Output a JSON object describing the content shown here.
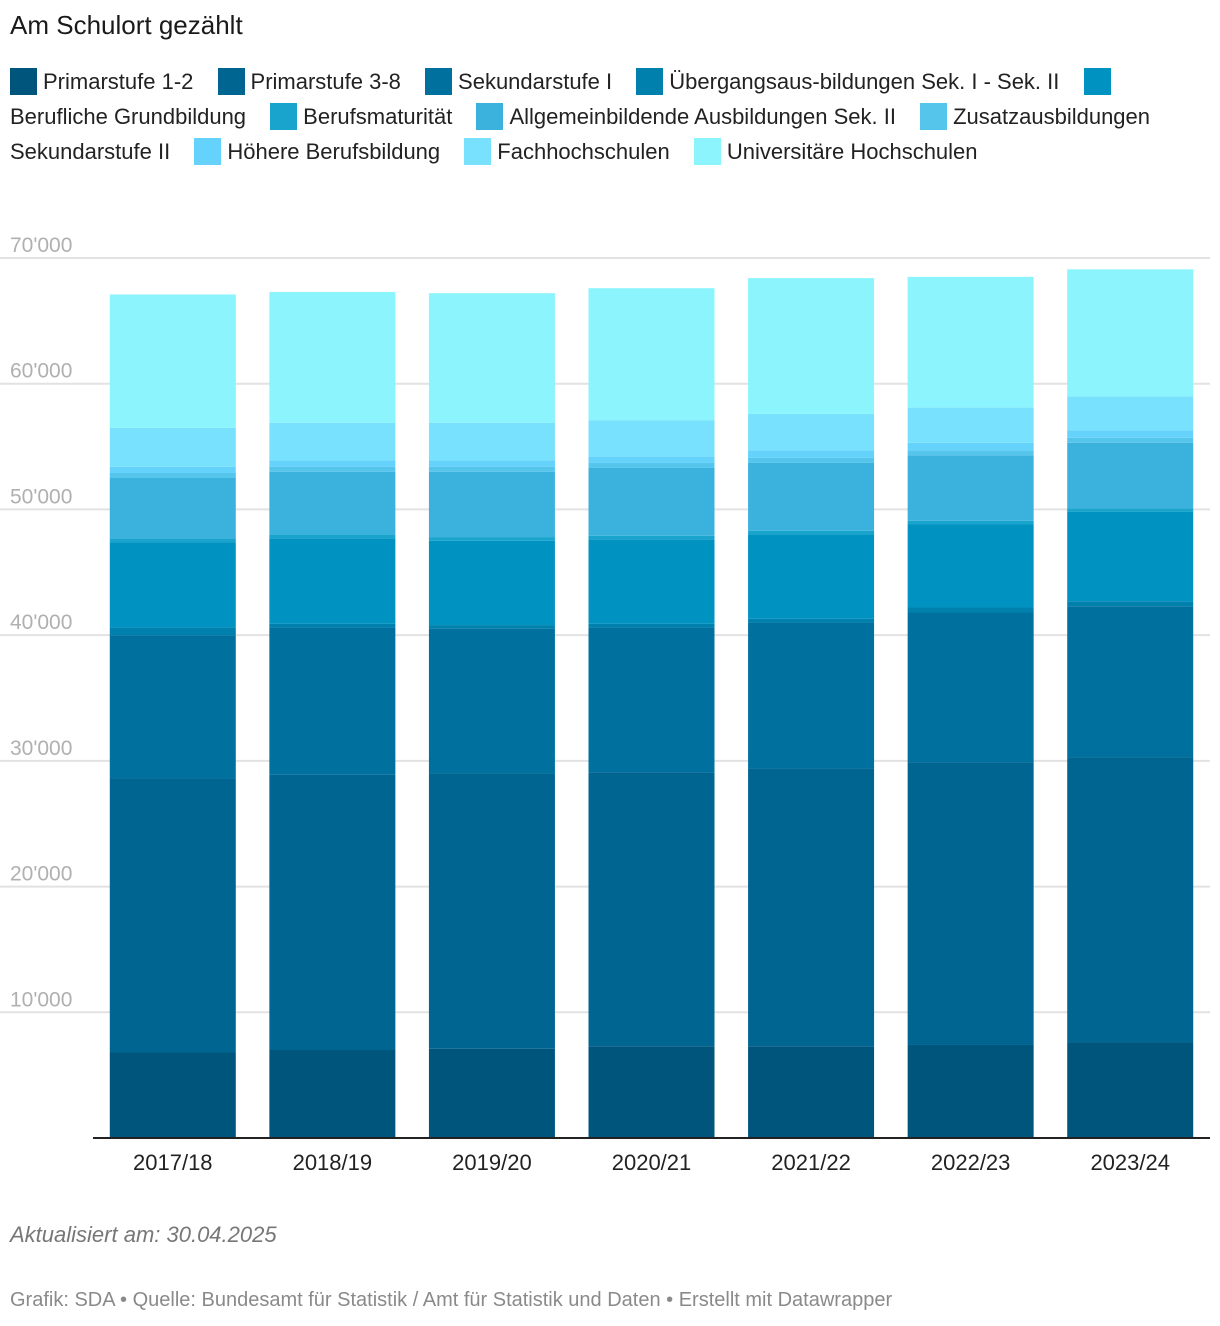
{
  "chart_data": {
    "type": "bar",
    "stacked": true,
    "title": "Am Schulort gezählt",
    "categories": [
      "2017/18",
      "2018/19",
      "2019/20",
      "2020/21",
      "2021/22",
      "2022/23",
      "2023/24"
    ],
    "ylim": [
      0,
      70000
    ],
    "yticks": [
      {
        "value": 10000,
        "label": "10'000"
      },
      {
        "value": 20000,
        "label": "20'000"
      },
      {
        "value": 30000,
        "label": "30'000"
      },
      {
        "value": 40000,
        "label": "40'000"
      },
      {
        "value": 50000,
        "label": "50'000"
      },
      {
        "value": 60000,
        "label": "60'000"
      },
      {
        "value": 70000,
        "label": "70'000"
      }
    ],
    "grid": true,
    "legend_position": "top",
    "series": [
      {
        "name": "Primarstufe 1-2",
        "color": "#00557d",
        "values": [
          6800,
          7000,
          7100,
          7300,
          7300,
          7400,
          7600
        ]
      },
      {
        "name": "Primarstufe 3-8",
        "color": "#006591",
        "values": [
          21800,
          21900,
          21900,
          21800,
          22100,
          22500,
          22700
        ]
      },
      {
        "name": "Sekundarstufe I",
        "color": "#00719f",
        "values": [
          11400,
          11700,
          11500,
          11500,
          11600,
          11900,
          12000
        ]
      },
      {
        "name": "Übergangsaus-bildungen Sek. I - Sek. II",
        "color": "#0080ac",
        "values": [
          600,
          300,
          300,
          300,
          300,
          400,
          400
        ]
      },
      {
        "name": "Berufliche Grundbildung",
        "color": "#0092c0",
        "values": [
          6800,
          6800,
          6700,
          6700,
          6700,
          6600,
          7100
        ]
      },
      {
        "name": "Berufsmaturität",
        "color": "#19a4ce",
        "values": [
          300,
          300,
          300,
          300,
          300,
          300,
          300
        ]
      },
      {
        "name": "Allgemeinbildende Ausbildungen Sek. II",
        "color": "#3ab2dd",
        "values": [
          4800,
          5000,
          5200,
          5400,
          5400,
          5200,
          5200
        ]
      },
      {
        "name": "Zusatzausbildungen Sekundarstufe II",
        "color": "#55c5ec",
        "values": [
          400,
          400,
          400,
          400,
          400,
          400,
          400
        ]
      },
      {
        "name": "Höhere Berufsbildung",
        "color": "#64d2fb",
        "values": [
          500,
          500,
          500,
          500,
          600,
          600,
          600
        ]
      },
      {
        "name": "Fachhochschulen",
        "color": "#78e1fd",
        "values": [
          3100,
          3000,
          3000,
          2900,
          2900,
          2800,
          2700
        ]
      },
      {
        "name": "Universitäre Hochschulen",
        "color": "#8cf4fd",
        "values": [
          10600,
          10400,
          10300,
          10500,
          10800,
          10400,
          10100
        ]
      }
    ]
  },
  "note": "Aktualisiert am: 30.04.2025",
  "footer": "Grafik: SDA • Quelle: Bundesamt für Statistik / Amt für Statistik und Daten • Erstellt mit Datawrapper"
}
